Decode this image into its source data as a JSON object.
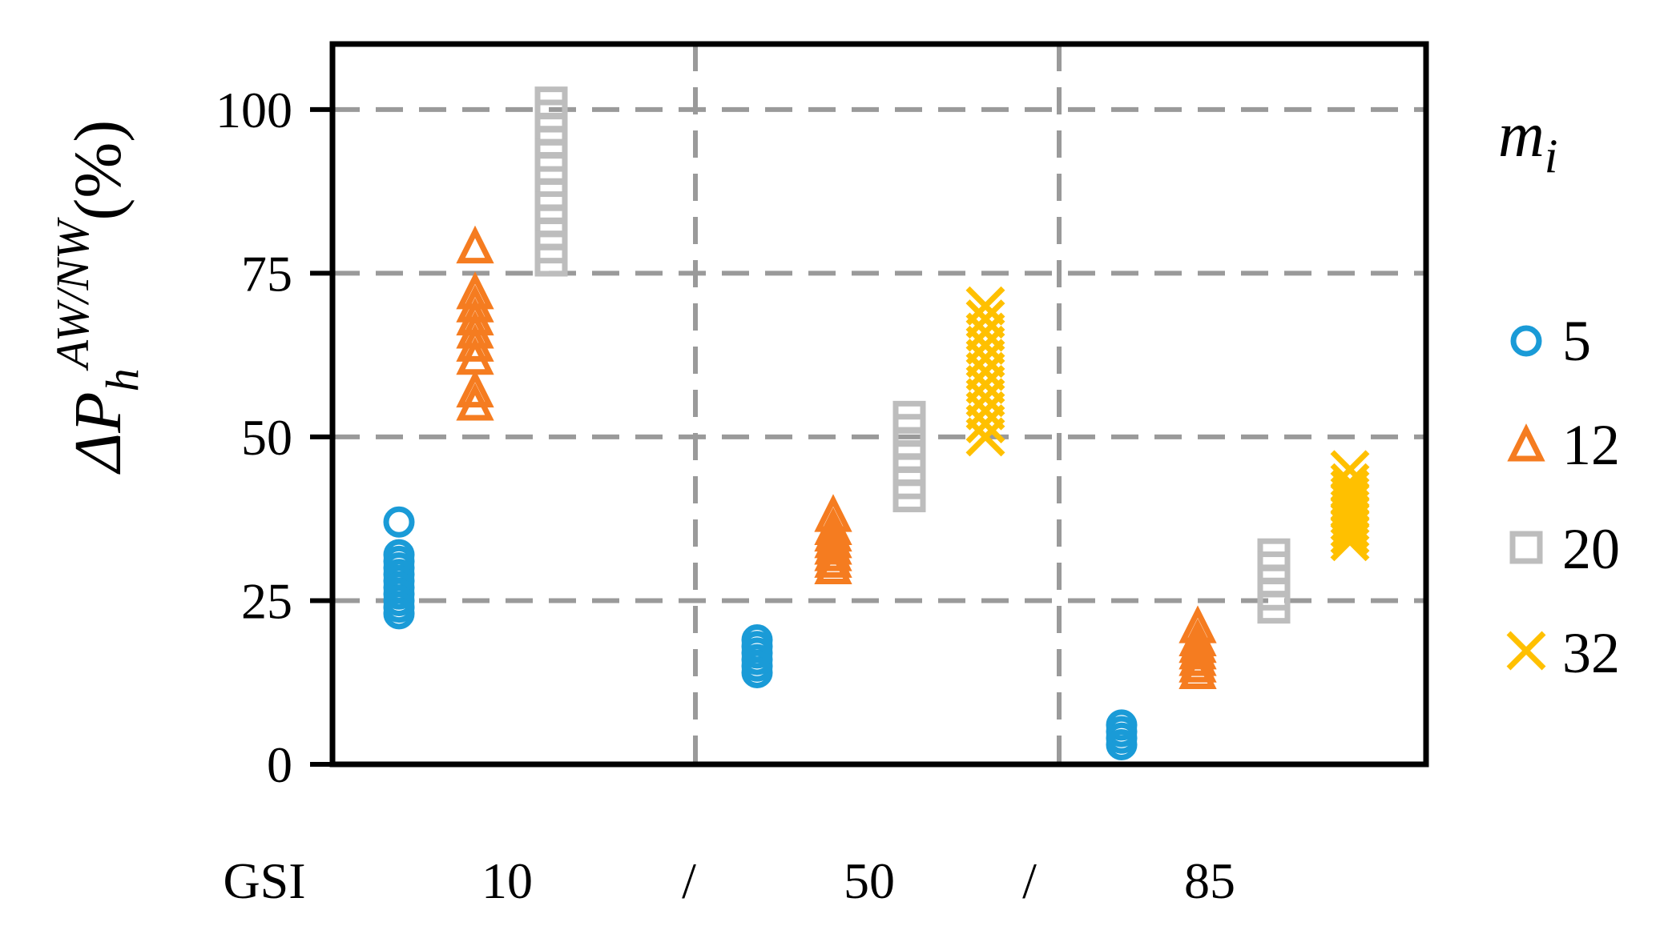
{
  "chart_data": {
    "type": "scatter",
    "ylabel": {
      "prefix": "ΔP",
      "sub": "h",
      "sup": "AW/NW",
      "suffix": "(%)"
    },
    "y_ticks": [
      0,
      25,
      50,
      75,
      100
    ],
    "ylim": [
      0,
      110
    ],
    "grid": true,
    "groups": {
      "axis_label": "GSI",
      "labels": [
        "10",
        "50",
        "85"
      ],
      "separator": "/"
    },
    "legend": {
      "title_main": "m",
      "title_sub": "i",
      "placement": "right"
    },
    "colors": {
      "5": "#1a9bd7",
      "12": "#f57c20",
      "20": "#bdbdbd",
      "32": "#ffc000",
      "grid": "#9a9a9a",
      "axis": "#000000"
    },
    "series": [
      {
        "name": "5",
        "marker": "circle",
        "points": [
          {
            "group": "10",
            "values": [
              37,
              32,
              31,
              30,
              29,
              28,
              27,
              26,
              25,
              24,
              23
            ]
          },
          {
            "group": "50",
            "values": [
              19,
              18,
              17,
              16,
              15,
              14
            ]
          },
          {
            "group": "85",
            "values": [
              6,
              5,
              4,
              3
            ]
          }
        ]
      },
      {
        "name": "12",
        "marker": "triangle",
        "points": [
          {
            "group": "10",
            "values": [
              79,
              72,
              70,
              68,
              66,
              64,
              62,
              57,
              55
            ]
          },
          {
            "group": "50",
            "values": [
              38,
              36,
              35,
              34,
              33,
              32,
              31,
              30
            ]
          },
          {
            "group": "85",
            "values": [
              21,
              19,
              18,
              17,
              16,
              15,
              14
            ]
          }
        ]
      },
      {
        "name": "20",
        "marker": "square",
        "points": [
          {
            "group": "10",
            "values": [
              101,
              99,
              97,
              95,
              93,
              91,
              87,
              85,
              83,
              81,
              79,
              77
            ]
          },
          {
            "group": "50",
            "values": [
              53,
              51,
              49,
              47,
              45,
              43,
              41
            ]
          },
          {
            "group": "85",
            "values": [
              32,
              30,
              28,
              26,
              24
            ]
          }
        ]
      },
      {
        "name": "32",
        "marker": "x",
        "points": [
          {
            "group": "50",
            "values": [
              70,
              68,
              66,
              64,
              62,
              60,
              58,
              56,
              54,
              52,
              50
            ]
          },
          {
            "group": "85",
            "values": [
              45,
              43,
              42,
              41,
              40,
              39,
              38,
              37,
              36,
              35,
              34
            ]
          }
        ]
      }
    ]
  }
}
